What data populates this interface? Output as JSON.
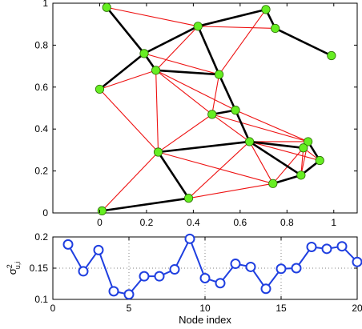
{
  "chart_data": [
    {
      "type": "scatter",
      "title": "",
      "xlabel": "",
      "ylabel": "",
      "xlim": [
        -0.2,
        1.1
      ],
      "ylim": [
        0,
        1
      ],
      "grid": false,
      "xticks": [
        0,
        0.2,
        0.4,
        0.6,
        0.8,
        1
      ],
      "xtick_labels": [
        "0",
        "0.2",
        "0.4",
        "0.6",
        "0.8",
        "1"
      ],
      "yticks": [
        0,
        0.2,
        0.4,
        0.6,
        0.8,
        1
      ],
      "ytick_labels": [
        "0",
        "0.2",
        "0.4",
        "0.6",
        "0.8",
        "1"
      ],
      "node_color": "#66ee22",
      "node_edge_color": "#2a6e00",
      "tree_edge_color": "#000000",
      "graph_edge_color": "#ee1111",
      "nodes": [
        {
          "x": 0.03,
          "y": 0.98
        },
        {
          "x": 0.42,
          "y": 0.89
        },
        {
          "x": 0.71,
          "y": 0.97
        },
        {
          "x": 0.75,
          "y": 0.88
        },
        {
          "x": 0.99,
          "y": 0.75
        },
        {
          "x": 0.19,
          "y": 0.76
        },
        {
          "x": 0.24,
          "y": 0.68
        },
        {
          "x": 0.51,
          "y": 0.66
        },
        {
          "x": 0.0,
          "y": 0.59
        },
        {
          "x": 0.58,
          "y": 0.49
        },
        {
          "x": 0.48,
          "y": 0.47
        },
        {
          "x": 0.64,
          "y": 0.34
        },
        {
          "x": 0.89,
          "y": 0.34
        },
        {
          "x": 0.87,
          "y": 0.31
        },
        {
          "x": 0.94,
          "y": 0.25
        },
        {
          "x": 0.25,
          "y": 0.29
        },
        {
          "x": 0.86,
          "y": 0.18
        },
        {
          "x": 0.74,
          "y": 0.14
        },
        {
          "x": 0.38,
          "y": 0.07
        },
        {
          "x": 0.01,
          "y": 0.01
        }
      ],
      "tree_edges": [
        [
          0,
          5
        ],
        [
          5,
          1
        ],
        [
          1,
          2
        ],
        [
          2,
          3
        ],
        [
          3,
          4
        ],
        [
          5,
          6
        ],
        [
          6,
          7
        ],
        [
          1,
          7
        ],
        [
          5,
          8
        ],
        [
          7,
          9
        ],
        [
          9,
          10
        ],
        [
          9,
          11
        ],
        [
          11,
          15
        ],
        [
          15,
          18
        ],
        [
          18,
          19
        ],
        [
          11,
          13
        ],
        [
          13,
          12
        ],
        [
          12,
          14
        ],
        [
          14,
          16
        ],
        [
          16,
          17
        ],
        [
          11,
          16
        ]
      ],
      "graph_edges": [
        [
          0,
          1
        ],
        [
          0,
          5
        ],
        [
          1,
          5
        ],
        [
          1,
          6
        ],
        [
          1,
          2
        ],
        [
          1,
          3
        ],
        [
          2,
          3
        ],
        [
          3,
          4
        ],
        [
          2,
          7
        ],
        [
          5,
          7
        ],
        [
          6,
          8
        ],
        [
          8,
          5
        ],
        [
          6,
          15
        ],
        [
          6,
          10
        ],
        [
          6,
          9
        ],
        [
          7,
          10
        ],
        [
          10,
          15
        ],
        [
          8,
          15
        ],
        [
          9,
          11
        ],
        [
          10,
          11
        ],
        [
          9,
          12
        ],
        [
          11,
          12
        ],
        [
          11,
          13
        ],
        [
          11,
          14
        ],
        [
          11,
          17
        ],
        [
          13,
          16
        ],
        [
          12,
          16
        ],
        [
          13,
          17
        ],
        [
          12,
          14
        ],
        [
          16,
          17
        ],
        [
          15,
          11
        ],
        [
          15,
          17
        ],
        [
          18,
          11
        ],
        [
          18,
          17
        ],
        [
          15,
          19
        ],
        [
          7,
          9
        ],
        [
          10,
          12
        ],
        [
          13,
          14
        ]
      ]
    },
    {
      "type": "line",
      "title": "",
      "xlabel": "Node index",
      "ylabel": "σ²u,i",
      "ylabel_main": "σ",
      "ylabel_sup": "2",
      "ylabel_sub": "u,i",
      "xlim": [
        0,
        20
      ],
      "ylim": [
        0.1,
        0.2
      ],
      "grid": true,
      "line_color": "#1f3fe0",
      "xticks": [
        0,
        5,
        10,
        15,
        20
      ],
      "xtick_labels": [
        "0",
        "5",
        "10",
        "15",
        "20"
      ],
      "yticks": [
        0.1,
        0.15,
        0.2
      ],
      "ytick_labels": [
        "0.1",
        "0.15",
        "0.2"
      ],
      "x": [
        1,
        2,
        3,
        4,
        5,
        6,
        7,
        8,
        9,
        10,
        11,
        12,
        13,
        14,
        15,
        16,
        17,
        18,
        19,
        20
      ],
      "values": [
        0.188,
        0.145,
        0.179,
        0.113,
        0.108,
        0.137,
        0.137,
        0.148,
        0.197,
        0.134,
        0.126,
        0.157,
        0.152,
        0.117,
        0.149,
        0.15,
        0.184,
        0.181,
        0.185,
        0.16
      ]
    }
  ]
}
